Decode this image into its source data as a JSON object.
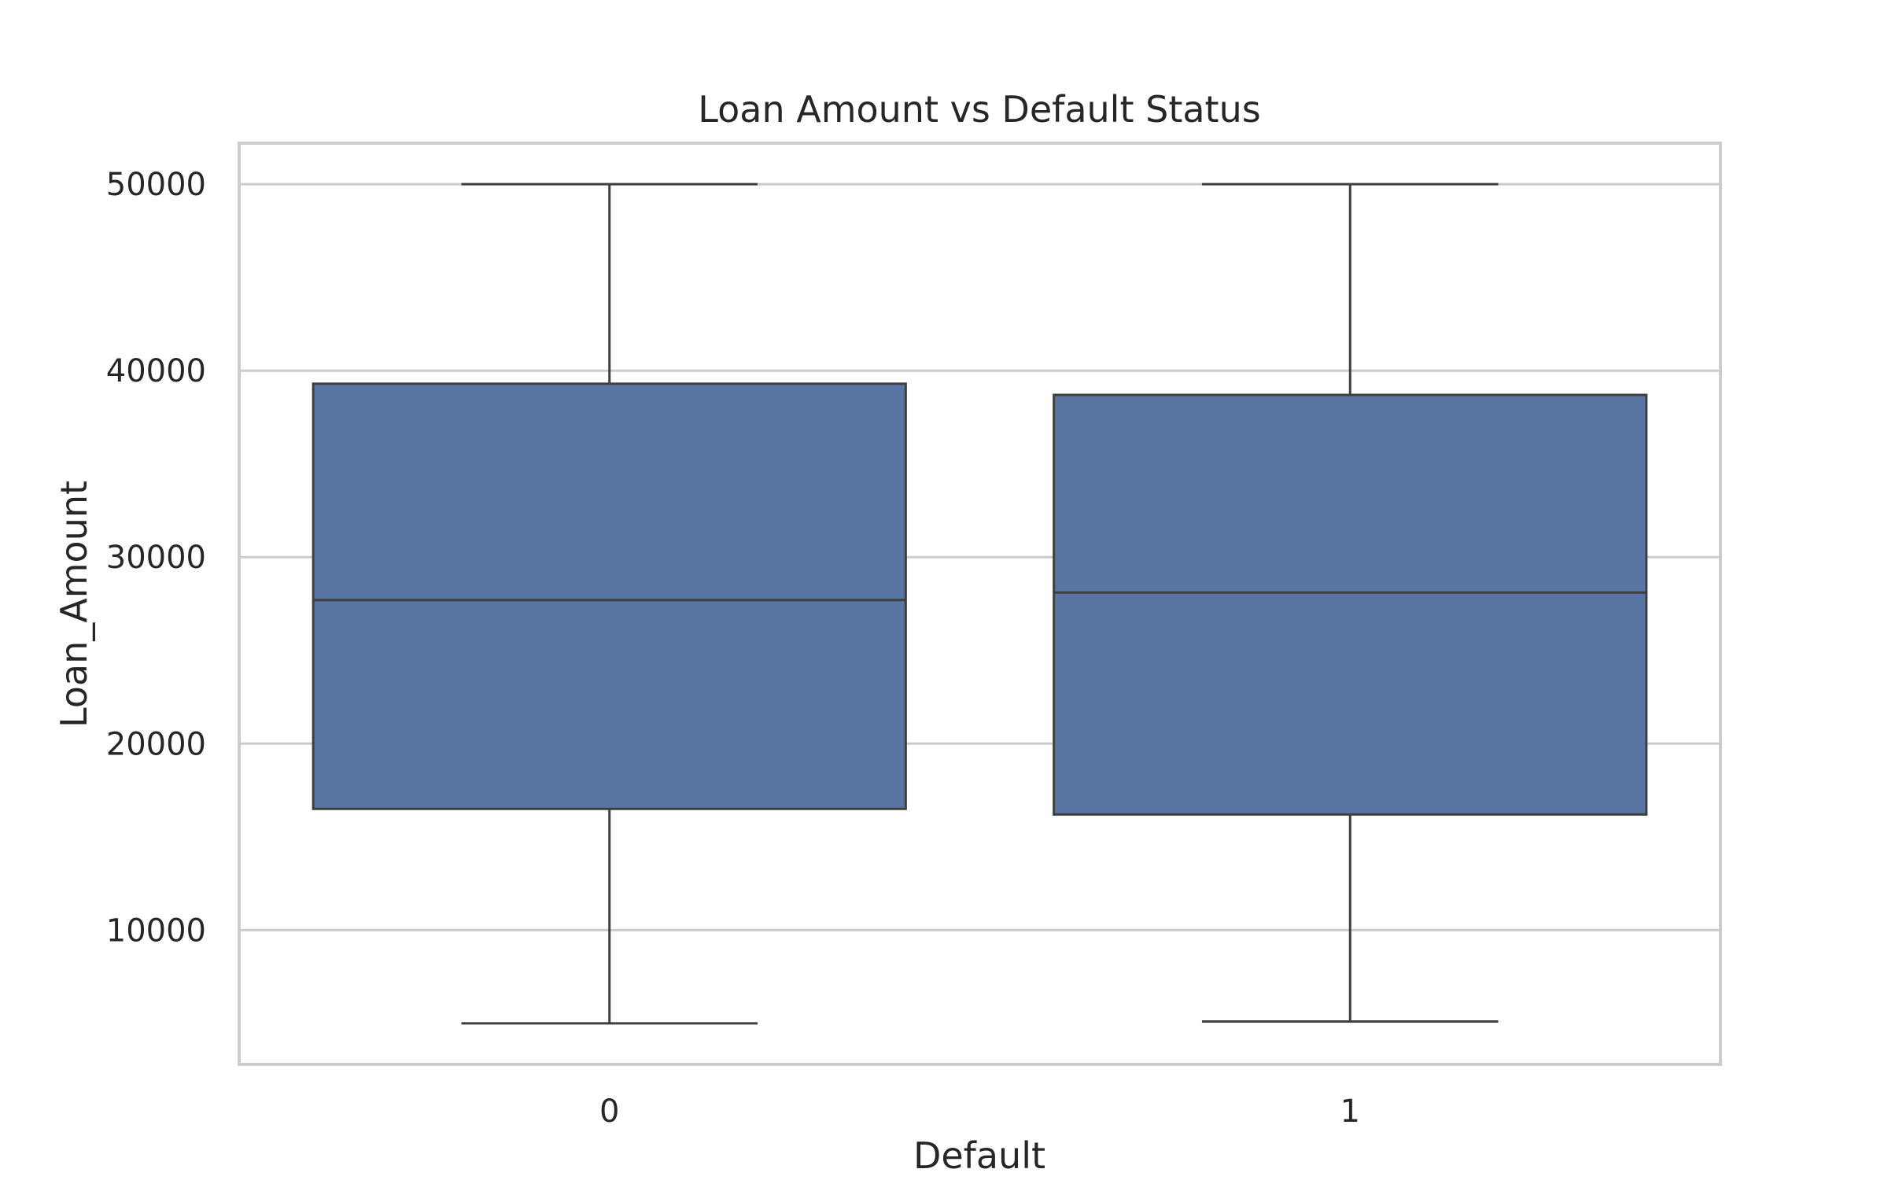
{
  "chart_data": {
    "type": "box",
    "title": "Loan Amount vs Default Status",
    "xlabel": "Default",
    "ylabel": "Loan_Amount",
    "ylim": [
      2800,
      52200
    ],
    "yticks": [
      10000,
      20000,
      30000,
      40000,
      50000
    ],
    "categories": [
      "0",
      "1"
    ],
    "boxes": [
      {
        "category": "0",
        "whisker_low": 5000,
        "q1": 16500,
        "median": 27700,
        "q3": 39300,
        "whisker_high": 50000
      },
      {
        "category": "1",
        "whisker_low": 5100,
        "q1": 16200,
        "median": 28100,
        "q3": 38700,
        "whisker_high": 50000
      }
    ],
    "grid": true,
    "legend": "none",
    "colors": {
      "box_fill": "#5975a4",
      "line": "#3f3f3f",
      "grid": "#cccccc",
      "frame": "#cccccc",
      "text": "#262626"
    }
  }
}
